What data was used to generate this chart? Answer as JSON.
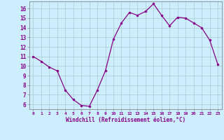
{
  "x": [
    0,
    1,
    2,
    3,
    4,
    5,
    6,
    7,
    8,
    9,
    10,
    11,
    12,
    13,
    14,
    15,
    16,
    17,
    18,
    19,
    20,
    21,
    22,
    23
  ],
  "y": [
    11.0,
    10.5,
    9.9,
    9.5,
    7.5,
    6.5,
    5.9,
    5.8,
    7.5,
    9.5,
    12.8,
    14.5,
    15.6,
    15.3,
    15.7,
    16.5,
    15.3,
    14.2,
    15.1,
    15.0,
    14.5,
    14.0,
    12.7,
    10.2
  ],
  "line_color": "#880088",
  "marker": "o",
  "marker_size": 2.0,
  "bg_color": "#cceeff",
  "grid_color": "#aacccc",
  "xlabel": "Windchill (Refroidissement éolien,°C)",
  "xlabel_color": "#880088",
  "tick_color": "#880088",
  "xlim": [
    -0.5,
    23.5
  ],
  "ylim": [
    5.5,
    16.75
  ],
  "yticks": [
    6,
    7,
    8,
    9,
    10,
    11,
    12,
    13,
    14,
    15,
    16
  ],
  "xticks": [
    0,
    1,
    2,
    3,
    4,
    5,
    6,
    7,
    8,
    9,
    10,
    11,
    12,
    13,
    14,
    15,
    16,
    17,
    18,
    19,
    20,
    21,
    22,
    23
  ],
  "xtick_labels": [
    "0",
    "1",
    "2",
    "3",
    "4",
    "5",
    "6",
    "7",
    "8",
    "9",
    "10",
    "11",
    "12",
    "13",
    "14",
    "15",
    "16",
    "17",
    "18",
    "19",
    "20",
    "21",
    "22",
    "23"
  ],
  "spine_color": "#888888",
  "title_color": "#880088"
}
